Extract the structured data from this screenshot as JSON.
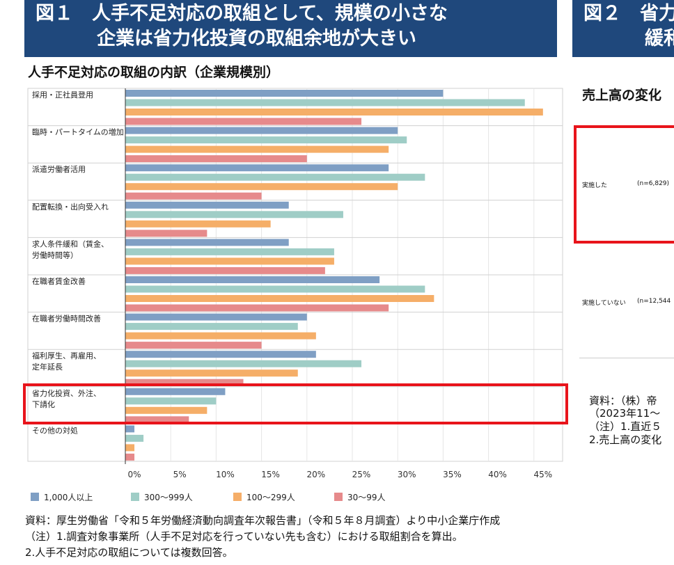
{
  "fig1": {
    "title_line1": "図１　人手不足対応の取組として、規模の小さな",
    "title_line2": "企業は省力化投資の取組余地が大きい",
    "subtitle": "人手不足対応の取組の内訳（企業規模別）",
    "notes": [
      "資料：厚生労働省「令和５年労働経済動向調査年次報告書」（令和５年８月調査）より中小企業庁作成",
      "（注）1.調査対象事業所（人手不足対応を行っていない先も含む）における取組割合を算出。",
      "2.人手不足対応の取組については複数回答。"
    ],
    "highlight": "省力化投資、外注、下請化"
  },
  "fig2": {
    "title_line1": "図２　省力",
    "title_line2": "緩和",
    "subtitle": "売上高の変化",
    "rows": [
      {
        "label": "実施した",
        "n": "(n=6,829)"
      },
      {
        "label": "実施していない",
        "n": "(n=12,544"
      }
    ],
    "notes": [
      "資料：（株）帝",
      "（2023年11〜",
      "（注）1.直近５",
      "2.売上高の変化"
    ]
  },
  "chart_data": {
    "type": "bar",
    "orientation": "horizontal",
    "categories": [
      [
        "採用・正社員登用"
      ],
      [
        "臨時・パートタイムの増加"
      ],
      [
        "派遣労働者活用"
      ],
      [
        "配置転換・出向受入れ"
      ],
      [
        "求人条件緩和（賃金、",
        "労働時間等）"
      ],
      [
        "在職者賃金改善"
      ],
      [
        "在職者労働時間改善"
      ],
      [
        "福利厚生、再雇用、",
        "定年延長"
      ],
      [
        "省力化投資、外注、",
        "下請化"
      ],
      [
        "その他の対処"
      ]
    ],
    "series": [
      {
        "name": "1,000人以上",
        "color": "#7f9fc4",
        "values": [
          35,
          30,
          29,
          18,
          18,
          28,
          20,
          21,
          11,
          1
        ]
      },
      {
        "name": "300〜999人",
        "color": "#9fcdc6",
        "values": [
          44,
          31,
          33,
          24,
          23,
          33,
          19,
          26,
          10,
          2
        ]
      },
      {
        "name": "100〜299人",
        "color": "#f5ae68",
        "values": [
          46,
          29,
          30,
          16,
          23,
          34,
          21,
          19,
          9,
          1
        ]
      },
      {
        "name": "30〜99人",
        "color": "#e68a8b",
        "values": [
          26,
          20,
          15,
          9,
          22,
          29,
          15,
          13,
          7,
          1
        ]
      }
    ],
    "ticks": [
      "0%",
      "5%",
      "10%",
      "15%",
      "20%",
      "25%",
      "30%",
      "35%",
      "40%",
      "45%"
    ],
    "xlim": [
      0,
      48
    ],
    "grid": true,
    "legend": "bottom"
  }
}
